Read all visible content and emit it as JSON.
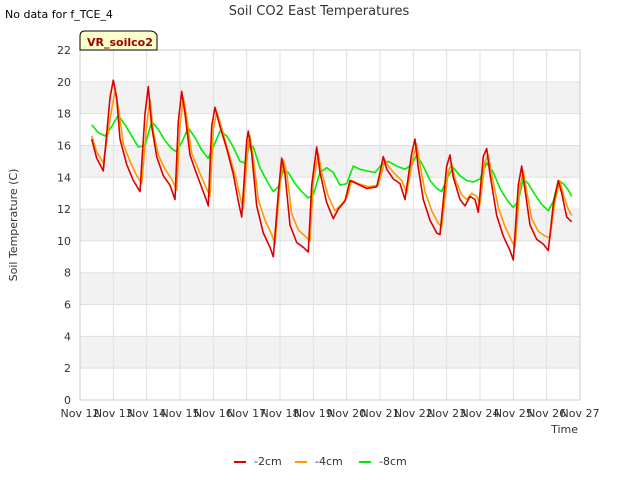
{
  "no_data_note": "No data for f_TCE_4",
  "chart_data": {
    "type": "line",
    "title": "Soil CO2 East Temperatures",
    "xlabel": "Time",
    "ylabel": "Soil Temperature (C)",
    "ylim": [
      0,
      22
    ],
    "yticks": [
      0,
      2,
      4,
      6,
      8,
      10,
      12,
      14,
      16,
      18,
      20,
      22
    ],
    "xlim": [
      12,
      27
    ],
    "xticks": [
      {
        "v": 12,
        "label": "Nov 12"
      },
      {
        "v": 13,
        "label": "Nov 13"
      },
      {
        "v": 14,
        "label": "Nov 14"
      },
      {
        "v": 15,
        "label": "Nov 15"
      },
      {
        "v": 16,
        "label": "Nov 16"
      },
      {
        "v": 17,
        "label": "Nov 17"
      },
      {
        "v": 18,
        "label": "Nov 18"
      },
      {
        "v": 19,
        "label": "Nov 19"
      },
      {
        "v": 20,
        "label": "Nov 20"
      },
      {
        "v": 21,
        "label": "Nov 21"
      },
      {
        "v": 22,
        "label": "Nov 22"
      },
      {
        "v": 23,
        "label": "Nov 23"
      },
      {
        "v": 24,
        "label": "Nov 24"
      },
      {
        "v": 25,
        "label": "Nov 25"
      },
      {
        "v": 26,
        "label": "Nov 26"
      },
      {
        "v": 27,
        "label": "Nov 27"
      }
    ],
    "grid": true,
    "legend_position": "bottom",
    "annotation": "VR_soilco2",
    "series": [
      {
        "name": "-2cm",
        "color": "#dd0000",
        "points": [
          [
            12.35,
            16.4
          ],
          [
            12.5,
            15.2
          ],
          [
            12.7,
            14.4
          ],
          [
            12.9,
            19.0
          ],
          [
            13.0,
            20.1
          ],
          [
            13.1,
            19.0
          ],
          [
            13.2,
            16.4
          ],
          [
            13.4,
            14.8
          ],
          [
            13.6,
            13.8
          ],
          [
            13.8,
            13.1
          ],
          [
            13.95,
            18.0
          ],
          [
            14.05,
            19.7
          ],
          [
            14.15,
            17.2
          ],
          [
            14.3,
            15.3
          ],
          [
            14.5,
            14.1
          ],
          [
            14.7,
            13.5
          ],
          [
            14.85,
            12.6
          ],
          [
            14.95,
            17.5
          ],
          [
            15.05,
            19.4
          ],
          [
            15.15,
            18.0
          ],
          [
            15.3,
            15.4
          ],
          [
            15.5,
            14.2
          ],
          [
            15.7,
            13.1
          ],
          [
            15.85,
            12.2
          ],
          [
            15.95,
            17.2
          ],
          [
            16.05,
            18.4
          ],
          [
            16.2,
            17.2
          ],
          [
            16.4,
            15.8
          ],
          [
            16.6,
            14.2
          ],
          [
            16.75,
            12.5
          ],
          [
            16.85,
            11.5
          ],
          [
            17.0,
            16.3
          ],
          [
            17.05,
            16.9
          ],
          [
            17.15,
            15.5
          ],
          [
            17.3,
            12.2
          ],
          [
            17.5,
            10.5
          ],
          [
            17.7,
            9.6
          ],
          [
            17.8,
            9.0
          ],
          [
            17.95,
            13.0
          ],
          [
            18.05,
            15.2
          ],
          [
            18.15,
            14.2
          ],
          [
            18.3,
            11.0
          ],
          [
            18.5,
            9.9
          ],
          [
            18.7,
            9.6
          ],
          [
            18.85,
            9.3
          ],
          [
            18.95,
            13.5
          ],
          [
            19.1,
            15.9
          ],
          [
            19.2,
            14.3
          ],
          [
            19.4,
            12.4
          ],
          [
            19.6,
            11.4
          ],
          [
            19.75,
            12.0
          ],
          [
            19.95,
            12.5
          ],
          [
            20.1,
            13.8
          ],
          [
            20.3,
            13.6
          ],
          [
            20.6,
            13.3
          ],
          [
            20.9,
            13.4
          ],
          [
            21.0,
            14.3
          ],
          [
            21.1,
            15.3
          ],
          [
            21.2,
            14.5
          ],
          [
            21.4,
            13.9
          ],
          [
            21.6,
            13.6
          ],
          [
            21.75,
            12.6
          ],
          [
            21.95,
            15.5
          ],
          [
            22.05,
            16.4
          ],
          [
            22.15,
            14.6
          ],
          [
            22.3,
            12.6
          ],
          [
            22.5,
            11.3
          ],
          [
            22.7,
            10.5
          ],
          [
            22.8,
            10.4
          ],
          [
            23.0,
            14.7
          ],
          [
            23.1,
            15.4
          ],
          [
            23.2,
            14.0
          ],
          [
            23.4,
            12.6
          ],
          [
            23.55,
            12.2
          ],
          [
            23.7,
            12.8
          ],
          [
            23.85,
            12.6
          ],
          [
            23.95,
            11.8
          ],
          [
            24.1,
            15.3
          ],
          [
            24.2,
            15.8
          ],
          [
            24.3,
            14.2
          ],
          [
            24.5,
            11.6
          ],
          [
            24.7,
            10.3
          ],
          [
            24.9,
            9.4
          ],
          [
            25.0,
            8.8
          ],
          [
            25.15,
            13.5
          ],
          [
            25.25,
            14.7
          ],
          [
            25.35,
            13.2
          ],
          [
            25.5,
            11.0
          ],
          [
            25.7,
            10.1
          ],
          [
            25.9,
            9.8
          ],
          [
            26.05,
            9.4
          ],
          [
            26.2,
            12.3
          ],
          [
            26.35,
            13.8
          ],
          [
            26.45,
            13.0
          ],
          [
            26.6,
            11.5
          ],
          [
            26.75,
            11.2
          ]
        ]
      },
      {
        "name": "-4cm",
        "color": "#ff9900",
        "points": [
          [
            12.35,
            16.6
          ],
          [
            12.5,
            15.6
          ],
          [
            12.7,
            14.9
          ],
          [
            12.95,
            18.3
          ],
          [
            13.05,
            19.4
          ],
          [
            13.15,
            18.4
          ],
          [
            13.3,
            16.1
          ],
          [
            13.5,
            15.0
          ],
          [
            13.7,
            14.1
          ],
          [
            13.85,
            13.6
          ],
          [
            14.0,
            17.3
          ],
          [
            14.1,
            18.9
          ],
          [
            14.2,
            16.9
          ],
          [
            14.35,
            15.4
          ],
          [
            14.55,
            14.5
          ],
          [
            14.75,
            13.9
          ],
          [
            14.9,
            13.2
          ],
          [
            15.0,
            17.2
          ],
          [
            15.1,
            19.0
          ],
          [
            15.2,
            17.8
          ],
          [
            15.35,
            15.5
          ],
          [
            15.55,
            14.5
          ],
          [
            15.75,
            13.5
          ],
          [
            15.9,
            12.8
          ],
          [
            16.0,
            17.0
          ],
          [
            16.1,
            18.1
          ],
          [
            16.25,
            17.1
          ],
          [
            16.45,
            15.6
          ],
          [
            16.65,
            14.2
          ],
          [
            16.8,
            12.8
          ],
          [
            16.9,
            12.0
          ],
          [
            17.05,
            16.2
          ],
          [
            17.1,
            16.6
          ],
          [
            17.2,
            15.2
          ],
          [
            17.35,
            12.6
          ],
          [
            17.55,
            11.3
          ],
          [
            17.75,
            10.4
          ],
          [
            17.85,
            9.8
          ],
          [
            18.0,
            13.5
          ],
          [
            18.1,
            15.1
          ],
          [
            18.2,
            14.3
          ],
          [
            18.35,
            11.7
          ],
          [
            18.55,
            10.7
          ],
          [
            18.75,
            10.3
          ],
          [
            18.9,
            10.0
          ],
          [
            19.0,
            13.7
          ],
          [
            19.15,
            15.5
          ],
          [
            19.25,
            14.3
          ],
          [
            19.45,
            12.8
          ],
          [
            19.65,
            11.9
          ],
          [
            19.8,
            12.2
          ],
          [
            20.0,
            12.7
          ],
          [
            20.15,
            13.8
          ],
          [
            20.35,
            13.6
          ],
          [
            20.65,
            13.4
          ],
          [
            20.95,
            13.5
          ],
          [
            21.05,
            14.3
          ],
          [
            21.15,
            15.1
          ],
          [
            21.25,
            14.7
          ],
          [
            21.45,
            14.2
          ],
          [
            21.65,
            13.8
          ],
          [
            21.8,
            13.0
          ],
          [
            22.0,
            15.3
          ],
          [
            22.1,
            16.1
          ],
          [
            22.2,
            14.8
          ],
          [
            22.35,
            13.1
          ],
          [
            22.55,
            11.9
          ],
          [
            22.75,
            11.1
          ],
          [
            22.85,
            10.9
          ],
          [
            23.05,
            14.4
          ],
          [
            23.15,
            14.8
          ],
          [
            23.25,
            13.9
          ],
          [
            23.45,
            12.9
          ],
          [
            23.6,
            12.6
          ],
          [
            23.75,
            13.0
          ],
          [
            23.9,
            12.8
          ],
          [
            24.0,
            12.3
          ],
          [
            24.15,
            15.0
          ],
          [
            24.25,
            15.4
          ],
          [
            24.35,
            14.2
          ],
          [
            24.55,
            12.1
          ],
          [
            24.75,
            10.9
          ],
          [
            24.95,
            10.0
          ],
          [
            25.05,
            9.6
          ],
          [
            25.2,
            13.4
          ],
          [
            25.3,
            14.4
          ],
          [
            25.4,
            13.1
          ],
          [
            25.55,
            11.4
          ],
          [
            25.75,
            10.6
          ],
          [
            25.95,
            10.3
          ],
          [
            26.1,
            10.2
          ],
          [
            26.25,
            12.5
          ],
          [
            26.4,
            13.8
          ],
          [
            26.5,
            12.9
          ],
          [
            26.65,
            12.0
          ],
          [
            26.75,
            11.6
          ]
        ]
      },
      {
        "name": "-8cm",
        "color": "#00ee00",
        "points": [
          [
            12.35,
            17.3
          ],
          [
            12.55,
            16.8
          ],
          [
            12.75,
            16.6
          ],
          [
            12.95,
            17.2
          ],
          [
            13.15,
            17.9
          ],
          [
            13.35,
            17.3
          ],
          [
            13.55,
            16.6
          ],
          [
            13.75,
            15.9
          ],
          [
            13.95,
            16.0
          ],
          [
            14.15,
            17.5
          ],
          [
            14.35,
            17.0
          ],
          [
            14.55,
            16.3
          ],
          [
            14.75,
            15.8
          ],
          [
            14.9,
            15.6
          ],
          [
            15.1,
            16.4
          ],
          [
            15.25,
            17.1
          ],
          [
            15.45,
            16.5
          ],
          [
            15.65,
            15.7
          ],
          [
            15.85,
            15.2
          ],
          [
            16.0,
            15.9
          ],
          [
            16.2,
            16.9
          ],
          [
            16.4,
            16.6
          ],
          [
            16.6,
            15.9
          ],
          [
            16.8,
            15.0
          ],
          [
            16.95,
            14.9
          ],
          [
            17.1,
            16.1
          ],
          [
            17.2,
            15.9
          ],
          [
            17.4,
            14.6
          ],
          [
            17.6,
            13.8
          ],
          [
            17.8,
            13.1
          ],
          [
            17.95,
            13.4
          ],
          [
            18.1,
            14.4
          ],
          [
            18.25,
            14.3
          ],
          [
            18.45,
            13.6
          ],
          [
            18.65,
            13.1
          ],
          [
            18.85,
            12.7
          ],
          [
            19.0,
            12.9
          ],
          [
            19.2,
            14.3
          ],
          [
            19.4,
            14.6
          ],
          [
            19.6,
            14.3
          ],
          [
            19.8,
            13.5
          ],
          [
            20.0,
            13.6
          ],
          [
            20.2,
            14.7
          ],
          [
            20.4,
            14.5
          ],
          [
            20.6,
            14.4
          ],
          [
            20.85,
            14.3
          ],
          [
            21.05,
            14.8
          ],
          [
            21.25,
            15.0
          ],
          [
            21.5,
            14.7
          ],
          [
            21.75,
            14.5
          ],
          [
            21.95,
            14.8
          ],
          [
            22.1,
            15.4
          ],
          [
            22.3,
            14.7
          ],
          [
            22.5,
            13.8
          ],
          [
            22.7,
            13.3
          ],
          [
            22.85,
            13.1
          ],
          [
            23.05,
            14.1
          ],
          [
            23.2,
            14.6
          ],
          [
            23.4,
            14.1
          ],
          [
            23.6,
            13.8
          ],
          [
            23.8,
            13.7
          ],
          [
            24.0,
            13.9
          ],
          [
            24.2,
            14.9
          ],
          [
            24.4,
            14.3
          ],
          [
            24.6,
            13.3
          ],
          [
            24.8,
            12.6
          ],
          [
            25.0,
            12.1
          ],
          [
            25.15,
            12.5
          ],
          [
            25.3,
            13.9
          ],
          [
            25.45,
            13.6
          ],
          [
            25.65,
            12.9
          ],
          [
            25.85,
            12.3
          ],
          [
            26.05,
            11.9
          ],
          [
            26.2,
            12.5
          ],
          [
            26.35,
            13.8
          ],
          [
            26.5,
            13.6
          ],
          [
            26.65,
            13.2
          ],
          [
            26.75,
            12.8
          ]
        ]
      }
    ]
  }
}
